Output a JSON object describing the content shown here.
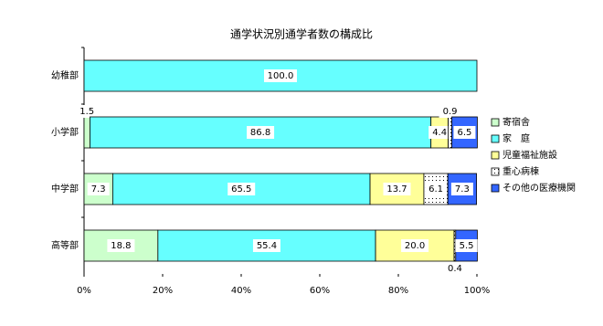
{
  "chart_data": {
    "type": "stacked-barh",
    "title": "通学状況別通学者数の構成比",
    "categories": [
      "幼稚部",
      "小学部",
      "中学部",
      "高等部"
    ],
    "series": [
      {
        "name": "寄宿舎",
        "color": "#ccffcc",
        "values": [
          0,
          1.5,
          7.3,
          18.8
        ],
        "value_labels": [
          null,
          "1.5",
          "7.3",
          "18.8"
        ]
      },
      {
        "name": "家　庭",
        "color": "#66ffff",
        "values": [
          100,
          86.8,
          65.5,
          55.4
        ],
        "value_labels": [
          "100.0",
          "86.8",
          "65.5",
          "55.4"
        ]
      },
      {
        "name": "児童福祉施設",
        "color": "#ffff99",
        "values": [
          0,
          4.4,
          13.7,
          20
        ],
        "value_labels": [
          null,
          "4.4",
          "13.7",
          "20.0"
        ]
      },
      {
        "name": "重心病棟",
        "color": "#ffffff",
        "pattern": "dotted",
        "values": [
          0,
          0.9,
          6.1,
          0.4
        ],
        "value_labels": [
          null,
          "0.9",
          "6.1",
          "0.4"
        ]
      },
      {
        "name": "その他の医療機関",
        "color": "#3366ff",
        "values": [
          0,
          6.5,
          7.3,
          5.5
        ],
        "value_labels": [
          null,
          "6.5",
          "7.3",
          "5.5"
        ]
      }
    ],
    "xlim": [
      0,
      100
    ],
    "xticks": [
      {
        "value": 0,
        "label": "0%"
      },
      {
        "value": 20,
        "label": "20%"
      },
      {
        "value": 40,
        "label": "40%"
      },
      {
        "value": 60,
        "label": "60%"
      },
      {
        "value": 80,
        "label": "80%"
      },
      {
        "value": 100,
        "label": "100%"
      }
    ],
    "legend": "right"
  }
}
